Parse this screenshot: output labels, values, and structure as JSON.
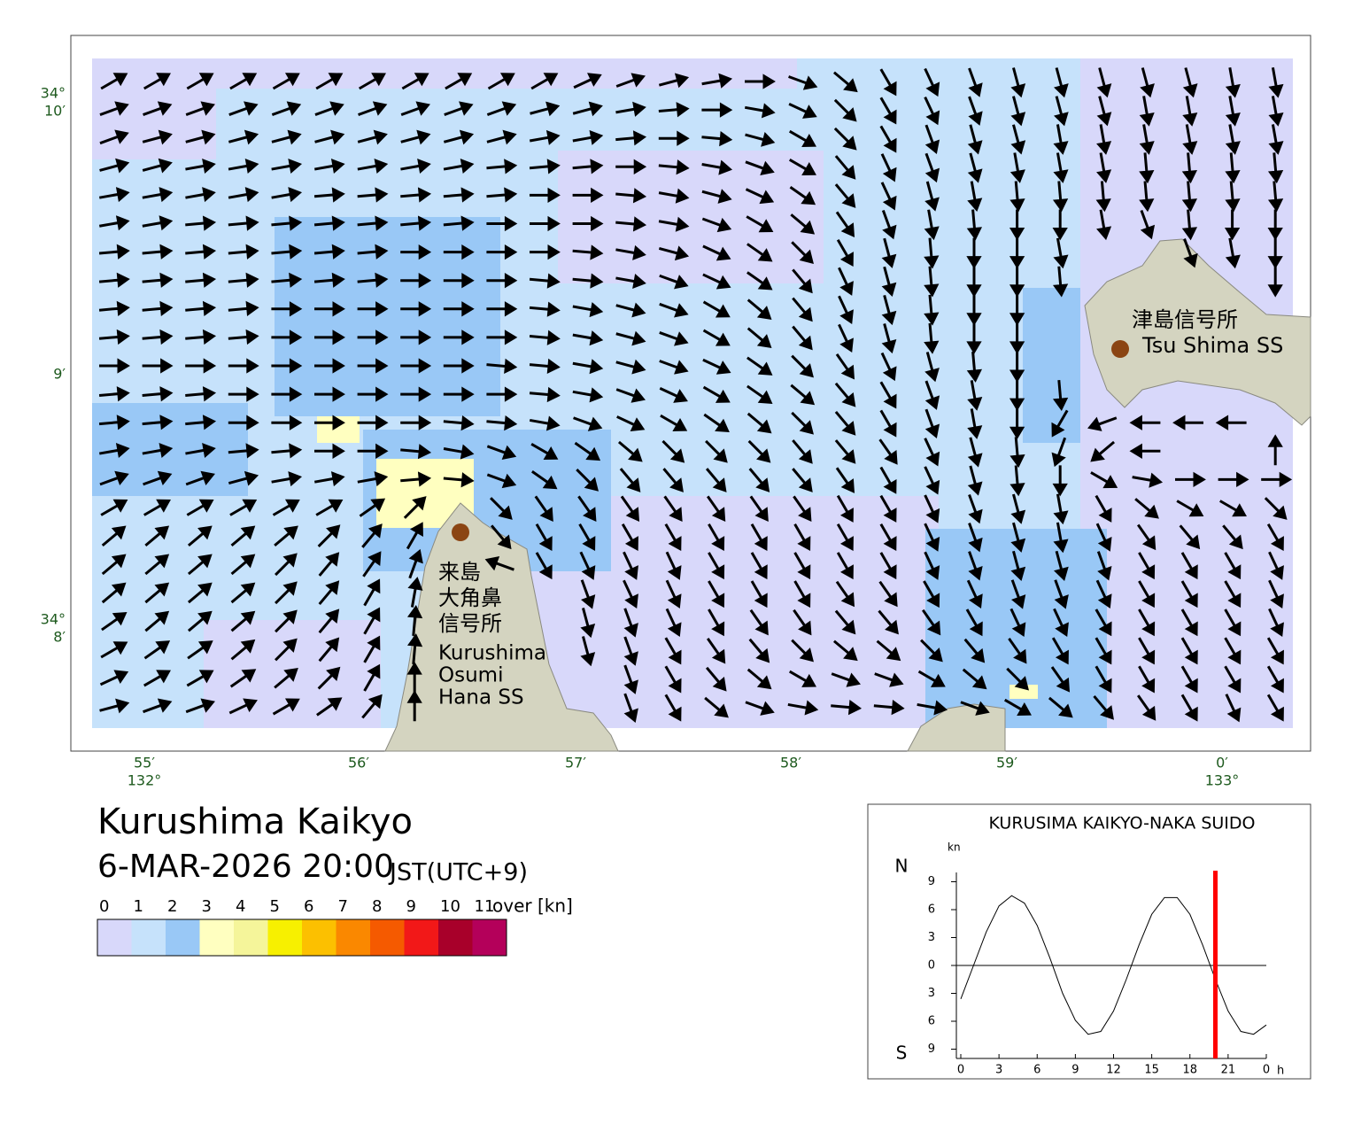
{
  "title": "Kurushima Kaikyo",
  "datetime": "6-MAR-2026 20:00",
  "timezone": "JST(UTC+9)",
  "legend": {
    "labels": [
      0,
      1,
      2,
      3,
      4,
      5,
      6,
      7,
      8,
      9,
      10,
      11
    ],
    "unit": "over [kn]",
    "colors": [
      "#d8d8fa",
      "#c6e2fb",
      "#99c8f6",
      "#ffffc0",
      "#f5f59a",
      "#f7f000",
      "#fcc000",
      "#fa8800",
      "#f55a00",
      "#f21818",
      "#a8002a",
      "#b4005a"
    ]
  },
  "map": {
    "lat_labels": [
      {
        "deg": "34°",
        "min": "10′"
      },
      {
        "min": "9′"
      },
      {
        "deg": "34°",
        "min": "8′"
      }
    ],
    "lon_labels": [
      {
        "min": "55′",
        "deg": "132°"
      },
      {
        "min": "56′"
      },
      {
        "min": "57′"
      },
      {
        "min": "58′"
      },
      {
        "min": "59′"
      },
      {
        "min": "0′",
        "deg": "133°"
      }
    ],
    "stations": [
      {
        "name_ja": [
          "津島信号所"
        ],
        "name_en": [
          "Tsu Shima SS"
        ]
      },
      {
        "name_ja": [
          "来島",
          "大角鼻",
          "信号所"
        ],
        "name_en": [
          "Kurushima",
          "Osumi",
          "Hana SS"
        ]
      }
    ],
    "current_directions": [
      [
        60,
        60,
        60,
        60,
        60,
        60,
        60,
        60,
        60,
        60,
        60,
        65,
        70,
        75,
        80,
        90,
        110,
        130,
        150,
        155,
        160,
        165,
        165,
        165,
        165,
        165,
        170,
        170
      ],
      [
        70,
        70,
        70,
        70,
        70,
        70,
        70,
        70,
        70,
        70,
        75,
        75,
        80,
        85,
        90,
        100,
        115,
        135,
        150,
        155,
        160,
        165,
        165,
        165,
        170,
        170,
        170,
        170
      ],
      [
        70,
        75,
        75,
        75,
        75,
        75,
        75,
        75,
        75,
        75,
        80,
        80,
        85,
        90,
        95,
        105,
        120,
        135,
        150,
        160,
        165,
        165,
        170,
        170,
        170,
        170,
        170,
        170
      ],
      [
        75,
        75,
        80,
        80,
        80,
        80,
        80,
        80,
        80,
        85,
        85,
        85,
        90,
        95,
        100,
        110,
        120,
        140,
        155,
        160,
        165,
        170,
        170,
        170,
        175,
        175,
        175,
        175
      ],
      [
        80,
        80,
        80,
        80,
        80,
        85,
        85,
        85,
        85,
        85,
        90,
        90,
        95,
        100,
        105,
        115,
        125,
        140,
        155,
        165,
        170,
        175,
        175,
        175,
        175,
        175,
        175,
        175
      ],
      [
        80,
        80,
        85,
        85,
        85,
        85,
        85,
        85,
        85,
        90,
        90,
        90,
        95,
        100,
        110,
        120,
        130,
        145,
        160,
        170,
        175,
        180,
        180,
        170,
        160,
        175,
        180,
        180
      ],
      [
        85,
        85,
        85,
        85,
        85,
        85,
        85,
        90,
        90,
        90,
        90,
        95,
        100,
        105,
        115,
        125,
        135,
        150,
        165,
        175,
        180,
        180,
        170,
        null,
        null,
        160,
        170,
        180
      ],
      [
        85,
        85,
        85,
        85,
        85,
        85,
        85,
        90,
        90,
        90,
        95,
        95,
        100,
        110,
        115,
        125,
        140,
        155,
        165,
        175,
        180,
        180,
        175,
        null,
        null,
        null,
        null,
        180
      ],
      [
        85,
        85,
        85,
        85,
        90,
        90,
        90,
        90,
        90,
        90,
        95,
        100,
        105,
        110,
        120,
        130,
        140,
        155,
        165,
        175,
        180,
        180,
        null,
        null,
        null,
        null,
        null,
        null
      ],
      [
        85,
        85,
        85,
        85,
        90,
        90,
        90,
        90,
        90,
        90,
        95,
        100,
        105,
        110,
        120,
        130,
        140,
        155,
        165,
        175,
        180,
        180,
        null,
        null,
        null,
        null,
        null,
        null
      ],
      [
        90,
        90,
        90,
        90,
        90,
        90,
        90,
        90,
        90,
        95,
        95,
        100,
        105,
        110,
        115,
        125,
        135,
        145,
        155,
        165,
        175,
        180,
        null,
        null,
        null,
        null,
        null,
        null
      ],
      [
        85,
        85,
        85,
        90,
        90,
        90,
        90,
        90,
        90,
        90,
        95,
        100,
        110,
        115,
        120,
        125,
        130,
        140,
        150,
        160,
        170,
        180,
        175,
        null,
        null,
        null,
        null,
        null
      ],
      [
        85,
        85,
        85,
        90,
        90,
        90,
        90,
        90,
        95,
        95,
        100,
        110,
        115,
        120,
        125,
        130,
        135,
        140,
        150,
        160,
        170,
        180,
        210,
        250,
        270,
        270,
        270,
        null
      ],
      [
        80,
        80,
        80,
        85,
        85,
        90,
        90,
        95,
        100,
        110,
        120,
        125,
        130,
        135,
        135,
        135,
        140,
        140,
        145,
        155,
        165,
        175,
        200,
        230,
        270,
        null,
        null,
        0
      ],
      [
        70,
        70,
        70,
        75,
        80,
        80,
        80,
        85,
        95,
        110,
        125,
        135,
        140,
        140,
        140,
        140,
        140,
        145,
        150,
        155,
        165,
        175,
        180,
        120,
        100,
        90,
        90,
        90
      ],
      [
        60,
        60,
        60,
        60,
        60,
        60,
        55,
        45,
        null,
        135,
        145,
        145,
        145,
        145,
        145,
        145,
        145,
        150,
        150,
        155,
        160,
        165,
        170,
        150,
        130,
        120,
        120,
        135
      ],
      [
        50,
        50,
        50,
        50,
        50,
        45,
        40,
        30,
        null,
        140,
        150,
        150,
        150,
        150,
        150,
        150,
        150,
        150,
        150,
        155,
        160,
        165,
        170,
        155,
        145,
        140,
        140,
        150
      ],
      [
        50,
        50,
        50,
        50,
        45,
        40,
        35,
        20,
        null,
        290,
        150,
        155,
        155,
        155,
        150,
        150,
        150,
        150,
        150,
        155,
        160,
        165,
        165,
        160,
        150,
        150,
        150,
        155
      ],
      [
        50,
        50,
        50,
        50,
        45,
        40,
        30,
        10,
        null,
        null,
        null,
        160,
        155,
        155,
        150,
        150,
        150,
        145,
        145,
        150,
        155,
        160,
        160,
        155,
        150,
        150,
        150,
        155
      ],
      [
        55,
        50,
        50,
        50,
        45,
        40,
        30,
        5,
        null,
        null,
        null,
        165,
        160,
        155,
        150,
        145,
        145,
        140,
        140,
        145,
        150,
        155,
        155,
        150,
        150,
        150,
        150,
        155
      ],
      [
        60,
        55,
        55,
        50,
        45,
        40,
        30,
        5,
        null,
        null,
        null,
        165,
        160,
        150,
        145,
        140,
        135,
        130,
        130,
        135,
        140,
        145,
        150,
        150,
        150,
        150,
        150,
        150
      ],
      [
        65,
        60,
        60,
        55,
        50,
        45,
        30,
        0,
        null,
        null,
        null,
        null,
        160,
        150,
        140,
        130,
        120,
        110,
        110,
        120,
        130,
        135,
        145,
        150,
        150,
        150,
        150,
        150
      ],
      [
        75,
        70,
        70,
        65,
        60,
        55,
        40,
        0,
        null,
        null,
        null,
        null,
        160,
        150,
        130,
        110,
        100,
        95,
        95,
        100,
        110,
        120,
        130,
        140,
        145,
        150,
        155,
        150
      ]
    ]
  },
  "chart_data": {
    "type": "line",
    "title": "KURUSIMA KAIKYO-NAKA SUIDO",
    "y_unit": "kn",
    "x_unit": "h",
    "north_label": "N",
    "south_label": "S",
    "x": [
      0,
      1,
      2,
      3,
      4,
      5,
      6,
      7,
      8,
      9,
      10,
      11,
      12,
      13,
      14,
      15,
      16,
      17,
      18,
      19,
      20,
      21,
      22,
      23,
      24
    ],
    "series": [
      {
        "color": "#000000",
        "values": [
          -3.6,
          0,
          3.6,
          6.4,
          7.5,
          6.7,
          4.3,
          0.8,
          -3.0,
          -5.9,
          -7.4,
          -7.1,
          -4.9,
          -1.5,
          2.2,
          5.5,
          7.3,
          7.3,
          5.5,
          2.2,
          -1.5,
          -4.9,
          -7.1,
          -7.4,
          -6.4
        ]
      }
    ],
    "xlim": [
      0,
      24
    ],
    "ylim": [
      -10,
      10
    ],
    "xticks": [
      0,
      3,
      6,
      9,
      12,
      15,
      18,
      21,
      {
        "value": 24,
        "label": "0"
      }
    ],
    "yticks": [
      9,
      6,
      3,
      0,
      {
        "value": -3,
        "label": "3"
      },
      {
        "value": -6,
        "label": "6"
      },
      {
        "value": -9,
        "label": "9"
      }
    ],
    "marker_x": 20,
    "marker_color": "#ff0000"
  }
}
